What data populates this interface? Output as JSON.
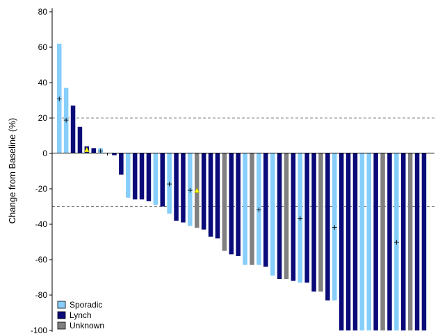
{
  "chart_data": {
    "type": "bar",
    "ylabel": "Change from Baseline (%)",
    "xlabel": "",
    "ylim": [
      -100,
      80
    ],
    "yticks": [
      80,
      60,
      40,
      20,
      0,
      -20,
      -40,
      -60,
      -80,
      -100
    ],
    "reference_lines": [
      20,
      -30
    ],
    "legend_position": "bottom-left",
    "colors": {
      "Sporadic": "#87CEFA",
      "Lynch": "#0A0A78",
      "Unknown": "#808080",
      "triangle_marker": "#FFFF00"
    },
    "legend": [
      {
        "name": "Sporadic",
        "label": "Sporadic"
      },
      {
        "name": "Lynch",
        "label": "Lynch"
      },
      {
        "name": "Unknown",
        "label": "Unknown"
      }
    ],
    "marker_legend": {
      "plus": "+",
      "triangle": "▲"
    },
    "bars": [
      {
        "group": "Sporadic",
        "value": 62,
        "marker_value": 31,
        "marker": "plus"
      },
      {
        "group": "Sporadic",
        "value": 37,
        "marker_value": 19,
        "marker": "plus"
      },
      {
        "group": "Lynch",
        "value": 27
      },
      {
        "group": "Lynch",
        "value": 15
      },
      {
        "group": "Lynch",
        "value": 4,
        "marker_value": 2,
        "marker": "triangle"
      },
      {
        "group": "Lynch",
        "value": 3
      },
      {
        "group": "Sporadic",
        "value": 3,
        "marker_value": 1.5,
        "marker": "plus"
      },
      {
        "group": "Lynch",
        "value": 0
      },
      {
        "group": "Lynch",
        "value": -1
      },
      {
        "group": "Lynch",
        "value": -12
      },
      {
        "group": "Sporadic",
        "value": -25
      },
      {
        "group": "Lynch",
        "value": -26
      },
      {
        "group": "Lynch",
        "value": -26
      },
      {
        "group": "Lynch",
        "value": -27
      },
      {
        "group": "Sporadic",
        "value": -29
      },
      {
        "group": "Lynch",
        "value": -30
      },
      {
        "group": "Sporadic",
        "value": -34,
        "marker_value": -17,
        "marker": "plus"
      },
      {
        "group": "Lynch",
        "value": -38
      },
      {
        "group": "Lynch",
        "value": -39
      },
      {
        "group": "Sporadic",
        "value": -41,
        "marker_value": -20.5,
        "marker": "plus"
      },
      {
        "group": "Unknown",
        "value": -42,
        "marker_value": -21,
        "marker": "triangle"
      },
      {
        "group": "Lynch",
        "value": -43
      },
      {
        "group": "Lynch",
        "value": -47
      },
      {
        "group": "Lynch",
        "value": -48
      },
      {
        "group": "Unknown",
        "value": -55
      },
      {
        "group": "Lynch",
        "value": -57
      },
      {
        "group": "Lynch",
        "value": -58
      },
      {
        "group": "Sporadic",
        "value": -63
      },
      {
        "group": "Unknown",
        "value": -63
      },
      {
        "group": "Sporadic",
        "value": -63,
        "marker_value": -31.5,
        "marker": "plus"
      },
      {
        "group": "Lynch",
        "value": -64
      },
      {
        "group": "Sporadic",
        "value": -69
      },
      {
        "group": "Lynch",
        "value": -71
      },
      {
        "group": "Unknown",
        "value": -71
      },
      {
        "group": "Lynch",
        "value": -72
      },
      {
        "group": "Sporadic",
        "value": -73,
        "marker_value": -36.5,
        "marker": "plus"
      },
      {
        "group": "Lynch",
        "value": -73
      },
      {
        "group": "Lynch",
        "value": -78
      },
      {
        "group": "Unknown",
        "value": -78
      },
      {
        "group": "Lynch",
        "value": -83
      },
      {
        "group": "Sporadic",
        "value": -83,
        "marker_value": -41.5,
        "marker": "plus"
      },
      {
        "group": "Lynch",
        "value": -100
      },
      {
        "group": "Lynch",
        "value": -100
      },
      {
        "group": "Lynch",
        "value": -100
      },
      {
        "group": "Sporadic",
        "value": -100
      },
      {
        "group": "Sporadic",
        "value": -100
      },
      {
        "group": "Lynch",
        "value": -100
      },
      {
        "group": "Unknown",
        "value": -100
      },
      {
        "group": "Lynch",
        "value": -100
      },
      {
        "group": "Sporadic",
        "value": -100,
        "marker_value": -50,
        "marker": "plus"
      },
      {
        "group": "Lynch",
        "value": -100
      },
      {
        "group": "Unknown",
        "value": -100
      },
      {
        "group": "Lynch",
        "value": -100
      },
      {
        "group": "Lynch",
        "value": -100
      }
    ]
  }
}
